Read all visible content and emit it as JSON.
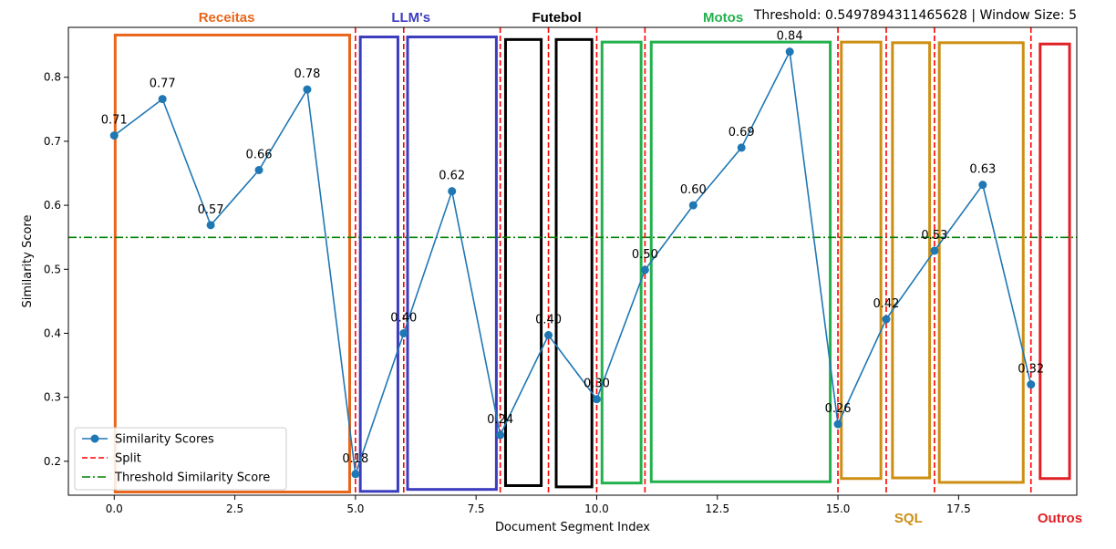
{
  "chart_data": {
    "type": "line",
    "header_text": "Threshold: 0.5497894311465628 | Window Size: 5",
    "xlabel": "Document Segment Index",
    "ylabel": "Similarity Score",
    "xlim": [
      -0.95,
      19.95
    ],
    "ylim": [
      0.147,
      0.878
    ],
    "x_ticks": [
      0.0,
      2.5,
      5.0,
      7.5,
      10.0,
      12.5,
      15.0,
      17.5
    ],
    "x_tick_labels": [
      "0.0",
      "2.5",
      "5.0",
      "7.5",
      "10.0",
      "12.5",
      "15.0",
      "17.5"
    ],
    "y_ticks": [
      0.2,
      0.3,
      0.4,
      0.5,
      0.6,
      0.7,
      0.8
    ],
    "y_tick_labels": [
      "0.2",
      "0.3",
      "0.4",
      "0.5",
      "0.6",
      "0.7",
      "0.8"
    ],
    "grid": false,
    "series": [
      {
        "name": "Similarity Scores",
        "color": "#1f77b4",
        "x": [
          0,
          1,
          2,
          3,
          4,
          5,
          6,
          7,
          8,
          9,
          10,
          11,
          12,
          13,
          14,
          15,
          16,
          17,
          18,
          19
        ],
        "y": [
          0.709,
          0.766,
          0.569,
          0.655,
          0.781,
          0.18,
          0.4,
          0.622,
          0.241,
          0.397,
          0.297,
          0.499,
          0.6,
          0.69,
          0.84,
          0.258,
          0.422,
          0.529,
          0.632,
          0.32
        ],
        "labels": [
          "0.71",
          "0.77",
          "0.57",
          "0.66",
          "0.78",
          "0.18",
          "0.40",
          "0.62",
          "0.24",
          "0.40",
          "0.30",
          "0.50",
          "0.60",
          "0.69",
          "0.84",
          "0.26",
          "0.42",
          "0.53",
          "0.63",
          "0.32"
        ]
      }
    ],
    "threshold": {
      "name": "Threshold Similarity Score",
      "value": 0.5497894311465628,
      "color": "#008000"
    },
    "splits": {
      "name": "Split",
      "color": "#ff0000",
      "x": [
        5,
        6,
        8,
        9,
        10,
        11,
        15,
        16,
        17,
        19
      ]
    },
    "legend_position": "lower-left",
    "topic_boxes": [
      {
        "x0": 0.02,
        "x1": 4.88,
        "y0": 0.152,
        "y1": 0.866,
        "color": "#e8661b"
      },
      {
        "x0": 5.1,
        "x1": 5.88,
        "y0": 0.153,
        "y1": 0.863,
        "color": "#3c3cbe"
      },
      {
        "x0": 6.08,
        "x1": 7.92,
        "y0": 0.156,
        "y1": 0.863,
        "color": "#3c3cbe"
      },
      {
        "x0": 8.11,
        "x1": 8.85,
        "y0": 0.162,
        "y1": 0.859,
        "color": "#000000"
      },
      {
        "x0": 9.16,
        "x1": 9.9,
        "y0": 0.16,
        "y1": 0.859,
        "color": "#000000"
      },
      {
        "x0": 10.11,
        "x1": 10.92,
        "y0": 0.166,
        "y1": 0.855,
        "color": "#22b14c"
      },
      {
        "x0": 11.13,
        "x1": 14.84,
        "y0": 0.168,
        "y1": 0.855,
        "color": "#22b14c"
      },
      {
        "x0": 15.07,
        "x1": 15.89,
        "y0": 0.173,
        "y1": 0.855,
        "color": "#cc8f14"
      },
      {
        "x0": 16.13,
        "x1": 16.9,
        "y0": 0.174,
        "y1": 0.854,
        "color": "#cc8f14"
      },
      {
        "x0": 17.1,
        "x1": 18.84,
        "y0": 0.167,
        "y1": 0.854,
        "color": "#cc8f14"
      },
      {
        "x0": 19.19,
        "x1": 19.8,
        "y0": 0.173,
        "y1": 0.852,
        "color": "#e01f26"
      }
    ],
    "topics": [
      {
        "text": "Receitas",
        "color": "#e8661b",
        "x": 2.33,
        "pos": "top"
      },
      {
        "text": "LLM's",
        "color": "#3c3cbe",
        "x": 6.15,
        "pos": "top"
      },
      {
        "text": "Futebol",
        "color": "#000000",
        "x": 9.17,
        "pos": "top"
      },
      {
        "text": "Motos",
        "color": "#22b14c",
        "x": 12.62,
        "pos": "top"
      },
      {
        "text": "SQL",
        "color": "#cc8f14",
        "x": 16.46,
        "pos": "bottom"
      },
      {
        "text": "Outros",
        "color": "#e01f26",
        "x": 19.6,
        "pos": "bottom"
      }
    ]
  }
}
